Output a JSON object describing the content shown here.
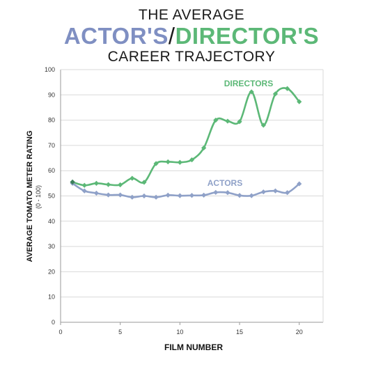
{
  "chart_data": {
    "type": "line",
    "title_line1": "THE AVERAGE",
    "title_actor": "ACTOR'S",
    "title_slash": "/",
    "title_director": "DIRECTOR'S",
    "title_line3": "CAREER TRAJECTORY",
    "xlabel": "FILM NUMBER",
    "ylabel": "AVERAGE TOMATO METER RATING",
    "ylabel_sub": "(0 - 100)",
    "xlim": [
      0,
      22
    ],
    "ylim": [
      0,
      100
    ],
    "xticks": [
      0,
      5,
      10,
      15,
      20
    ],
    "yticks": [
      0,
      10,
      20,
      30,
      40,
      50,
      60,
      70,
      80,
      90,
      100
    ],
    "grid": true,
    "x": [
      1,
      2,
      3,
      4,
      5,
      6,
      7,
      8,
      9,
      10,
      11,
      12,
      13,
      14,
      15,
      16,
      17,
      18,
      19,
      20
    ],
    "series": [
      {
        "name": "DIRECTORS",
        "color": "#5cb877",
        "values": [
          55.5,
          54.2,
          55.0,
          54.5,
          54.4,
          57.0,
          55.4,
          62.8,
          63.5,
          63.3,
          64.3,
          69.0,
          80.0,
          79.6,
          79.4,
          91.2,
          78.0,
          90.4,
          92.5,
          87.3
        ]
      },
      {
        "name": "ACTORS",
        "color": "#8fa1c8",
        "values": [
          55.0,
          52.0,
          51.1,
          50.4,
          50.4,
          49.5,
          50.0,
          49.5,
          50.3,
          50.1,
          50.2,
          50.3,
          51.4,
          51.3,
          50.2,
          50.1,
          51.6,
          52.0,
          51.3,
          54.8
        ]
      }
    ],
    "colors": {
      "actor": "#7f8fc2",
      "director": "#5cb877",
      "grid": "#d9d9d9",
      "axis": "#999999"
    }
  }
}
